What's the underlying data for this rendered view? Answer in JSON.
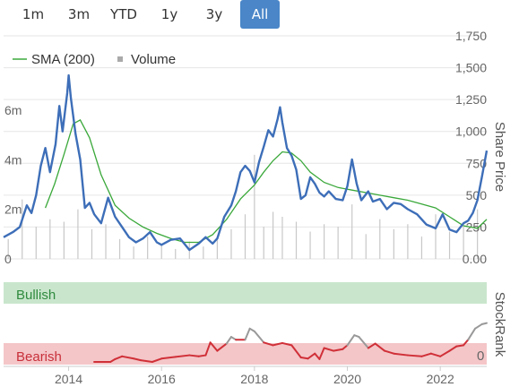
{
  "range_selector": {
    "buttons": [
      "1m",
      "3m",
      "YTD",
      "1y",
      "3y",
      "All"
    ],
    "active": "All",
    "active_color": "#4a86c8"
  },
  "chart_data": {
    "type": "line",
    "title": "",
    "legend": {
      "placement": "top-left",
      "items": [
        {
          "label": "SMA (200)",
          "color": "#3aa83a",
          "marker": "line"
        },
        {
          "label": "Volume",
          "color": "#aaaaaa",
          "marker": "square"
        }
      ]
    },
    "x_axis": {
      "ticks": [
        "2014",
        "2016",
        "2018",
        "2020",
        "2022"
      ],
      "tick_values": [
        2014,
        2016,
        2018,
        2020,
        2022
      ],
      "range": [
        2012.6,
        2023.0
      ]
    },
    "price_axis": {
      "label": "Share Price",
      "ticks": [
        "1,750",
        "1,500",
        "1,250",
        "1,000",
        "750",
        "500",
        "250",
        "0.00"
      ],
      "tick_values": [
        1750,
        1500,
        1250,
        1000,
        750,
        500,
        250,
        0
      ],
      "range": [
        0,
        1750
      ],
      "gridlines": true
    },
    "volume_axis": {
      "ticks": [
        "6m",
        "4m",
        "2m",
        "0"
      ],
      "tick_values": [
        6000000,
        4000000,
        2000000,
        0
      ],
      "range": [
        0,
        9000000
      ]
    },
    "series": [
      {
        "name": "",
        "color": "#3d6eb8",
        "x": [
          2012.6,
          2012.8,
          2012.95,
          2013.1,
          2013.2,
          2013.3,
          2013.4,
          2013.5,
          2013.6,
          2013.72,
          2013.8,
          2013.87,
          2013.92,
          2013.97,
          2014.0,
          2014.05,
          2014.15,
          2014.25,
          2014.35,
          2014.45,
          2014.55,
          2014.7,
          2014.85,
          2015.0,
          2015.15,
          2015.3,
          2015.45,
          2015.6,
          2015.75,
          2015.9,
          2016.0,
          2016.2,
          2016.4,
          2016.6,
          2016.8,
          2016.95,
          2017.1,
          2017.2,
          2017.35,
          2017.5,
          2017.6,
          2017.7,
          2017.8,
          2017.9,
          2018.0,
          2018.1,
          2018.2,
          2018.3,
          2018.4,
          2018.5,
          2018.55,
          2018.6,
          2018.7,
          2018.8,
          2018.9,
          2019.0,
          2019.1,
          2019.2,
          2019.3,
          2019.4,
          2019.5,
          2019.6,
          2019.75,
          2019.9,
          2020.0,
          2020.1,
          2020.2,
          2020.3,
          2020.45,
          2020.55,
          2020.7,
          2020.85,
          2021.0,
          2021.15,
          2021.3,
          2021.5,
          2021.7,
          2021.9,
          2022.05,
          2022.2,
          2022.35,
          2022.5,
          2022.6,
          2022.7,
          2022.8,
          2022.9,
          2023.0
        ],
        "y": [
          170,
          210,
          250,
          420,
          360,
          500,
          730,
          870,
          680,
          900,
          1200,
          1000,
          1150,
          1300,
          1440,
          1260,
          980,
          780,
          400,
          440,
          350,
          280,
          480,
          330,
          250,
          170,
          130,
          160,
          210,
          130,
          110,
          150,
          160,
          70,
          120,
          170,
          120,
          160,
          330,
          420,
          530,
          680,
          730,
          690,
          600,
          760,
          880,
          1010,
          960,
          1100,
          1190,
          1070,
          870,
          810,
          700,
          470,
          500,
          640,
          590,
          520,
          490,
          530,
          470,
          460,
          570,
          780,
          590,
          460,
          530,
          450,
          470,
          390,
          440,
          430,
          390,
          350,
          270,
          240,
          350,
          230,
          210,
          280,
          300,
          360,
          460,
          650,
          850
        ]
      },
      {
        "name": "SMA (200)",
        "color": "#3aa83a",
        "x": [
          2013.5,
          2013.7,
          2013.9,
          2014.1,
          2014.25,
          2014.45,
          2014.7,
          2015.0,
          2015.3,
          2015.6,
          2015.9,
          2016.2,
          2016.5,
          2016.8,
          2017.1,
          2017.4,
          2017.7,
          2018.0,
          2018.2,
          2018.4,
          2018.6,
          2018.8,
          2019.0,
          2019.2,
          2019.5,
          2019.8,
          2020.1,
          2020.4,
          2020.7,
          2021.0,
          2021.3,
          2021.6,
          2021.9,
          2022.2,
          2022.5,
          2022.8,
          2023.0
        ],
        "y": [
          400,
          590,
          820,
          1060,
          1090,
          950,
          660,
          420,
          320,
          250,
          200,
          160,
          130,
          130,
          190,
          310,
          470,
          580,
          680,
          770,
          840,
          830,
          770,
          680,
          600,
          560,
          540,
          520,
          500,
          480,
          460,
          430,
          400,
          330,
          260,
          240,
          310
        ]
      }
    ],
    "volume": {
      "name": "Volume",
      "x": [
        2012.7,
        2013.0,
        2013.3,
        2013.6,
        2013.9,
        2014.2,
        2014.5,
        2014.8,
        2015.1,
        2015.4,
        2015.7,
        2016.0,
        2016.3,
        2016.6,
        2016.9,
        2017.2,
        2017.5,
        2017.8,
        2018.0,
        2018.2,
        2018.4,
        2018.6,
        2018.9,
        2019.2,
        2019.5,
        2019.8,
        2020.1,
        2020.4,
        2020.7,
        2021.0,
        2021.3,
        2021.6,
        2021.9,
        2022.2,
        2022.5,
        2022.8
      ],
      "values": [
        800000,
        2400000,
        1300000,
        1600000,
        1500000,
        2000000,
        1200000,
        1400000,
        800000,
        500000,
        900000,
        600000,
        400000,
        700000,
        500000,
        900000,
        1200000,
        1800000,
        4200000,
        1300000,
        1900000,
        1700000,
        1500000,
        1100000,
        1400000,
        1300000,
        2200000,
        1000000,
        1600000,
        1200000,
        1400000,
        900000,
        1800000,
        1100000,
        1300000,
        2000000
      ]
    },
    "stockrank": {
      "label": "StockRank",
      "zones": {
        "top": "Bullish",
        "bottom": "Bearish"
      },
      "zone_colors": {
        "bullish": "#c9e6cc",
        "bearish": "#f4c6c8"
      },
      "axis_tick": "0",
      "range": [
        0,
        100
      ],
      "series_colors": {
        "bearish": "#d03038",
        "neutral": "#999999"
      },
      "x": [
        2014.55,
        2014.9,
        2015.0,
        2015.15,
        2015.4,
        2015.55,
        2015.8,
        2016.0,
        2016.3,
        2016.6,
        2016.8,
        2016.95,
        2017.05,
        2017.2,
        2017.4,
        2017.5,
        2017.6,
        2017.8,
        2017.9,
        2018.0,
        2018.2,
        2018.4,
        2018.6,
        2018.8,
        2019.0,
        2019.15,
        2019.3,
        2019.4,
        2019.5,
        2019.7,
        2019.9,
        2020.0,
        2020.15,
        2020.25,
        2020.45,
        2020.6,
        2020.8,
        2021.0,
        2021.3,
        2021.6,
        2021.8,
        2022.0,
        2022.2,
        2022.35,
        2022.5,
        2022.6,
        2022.75,
        2022.9,
        2023.0
      ],
      "values": [
        0,
        0,
        5,
        10,
        6,
        3,
        0,
        6,
        9,
        12,
        10,
        12,
        35,
        20,
        33,
        45,
        40,
        40,
        60,
        55,
        35,
        30,
        34,
        30,
        8,
        6,
        15,
        5,
        25,
        20,
        23,
        30,
        48,
        45,
        25,
        33,
        20,
        15,
        12,
        10,
        15,
        10,
        20,
        28,
        30,
        40,
        60,
        68,
        70
      ]
    }
  }
}
